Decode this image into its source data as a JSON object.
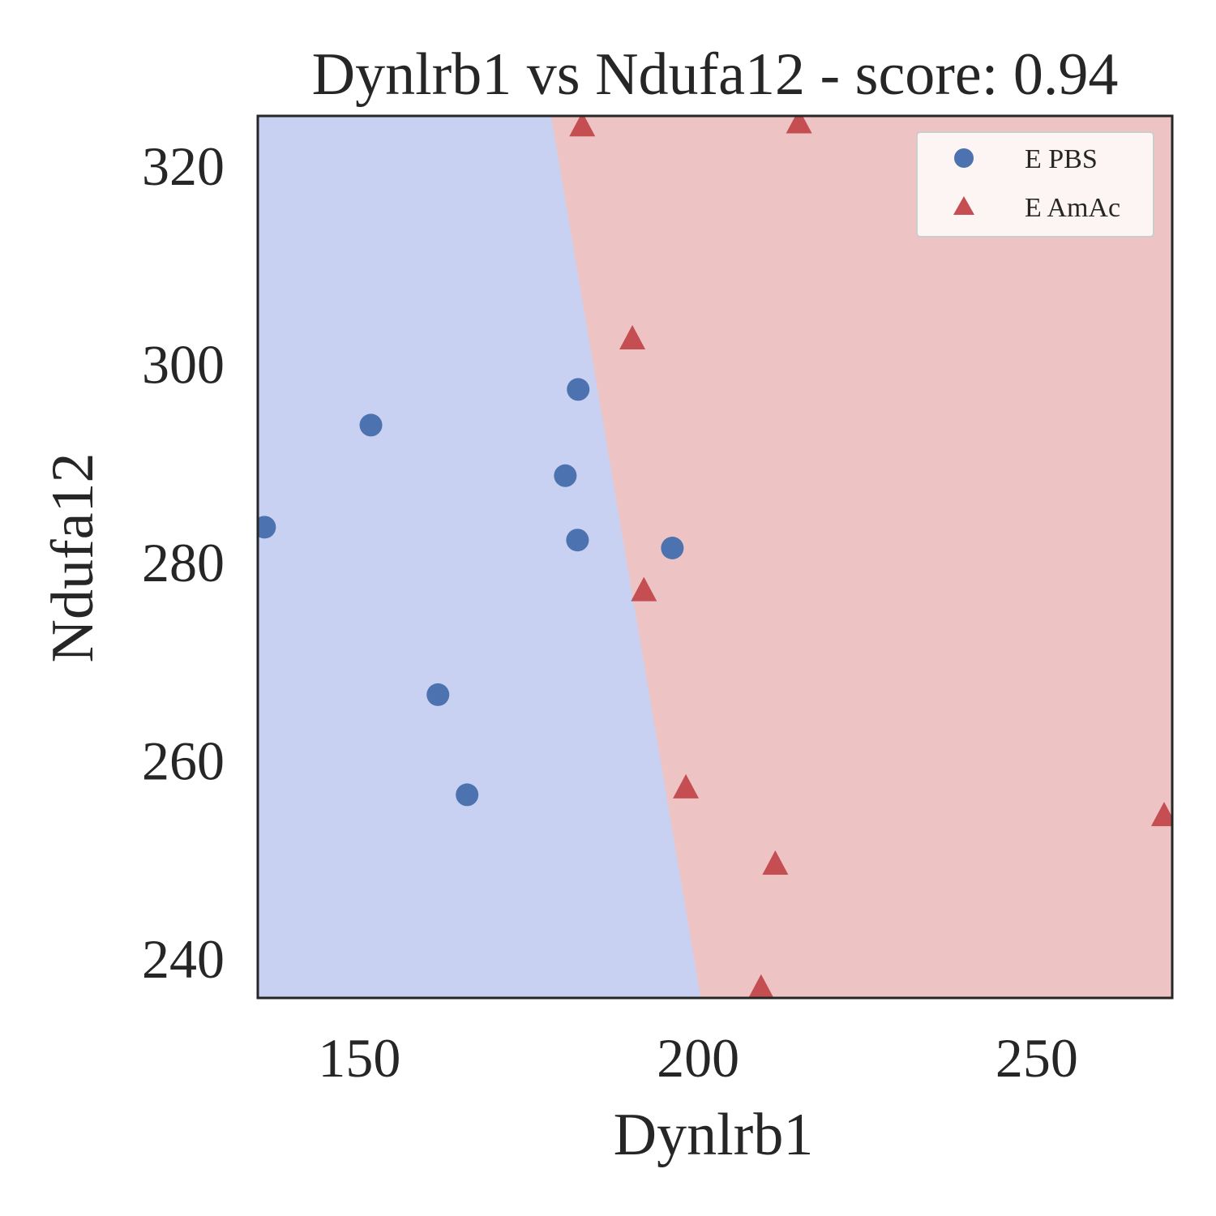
{
  "chart_data": {
    "type": "scatter",
    "title": "Dynlrb1 vs Ndufa12 - score: 0.94",
    "xlabel": "Dynlrb1",
    "ylabel": "Ndufa12",
    "xlim": [
      135,
      270
    ],
    "ylim": [
      236,
      325
    ],
    "xticks": [
      150,
      200,
      250
    ],
    "yticks": [
      240,
      260,
      280,
      300,
      320
    ],
    "grid": false,
    "legend_position": "top-right",
    "decision_boundary": {
      "left_region_class": "E PBS",
      "right_region_class": "E AmAc",
      "line": [
        [
          178.3,
          325
        ],
        [
          200.4,
          236
        ]
      ],
      "left_color": "#c8d1f1",
      "right_color": "#edc4c3"
    },
    "series": [
      {
        "name": "E PBS",
        "marker": "circle",
        "color": "#4c72b0",
        "points": [
          [
            136,
            283.5
          ],
          [
            151.7,
            293.8
          ],
          [
            161.6,
            266.6
          ],
          [
            165.9,
            256.5
          ],
          [
            180.4,
            288.7
          ],
          [
            182.3,
            297.4
          ],
          [
            182.2,
            282.2
          ],
          [
            196.2,
            281.4
          ]
        ]
      },
      {
        "name": "E AmAc",
        "marker": "triangle",
        "color": "#c44e52",
        "points": [
          [
            182.9,
            324.0
          ],
          [
            214.9,
            324.3
          ],
          [
            190.3,
            302.5
          ],
          [
            192.0,
            277.1
          ],
          [
            198.2,
            257.2
          ],
          [
            211.4,
            249.5
          ],
          [
            209.3,
            237.0
          ],
          [
            268.8,
            254.4
          ]
        ]
      }
    ]
  }
}
